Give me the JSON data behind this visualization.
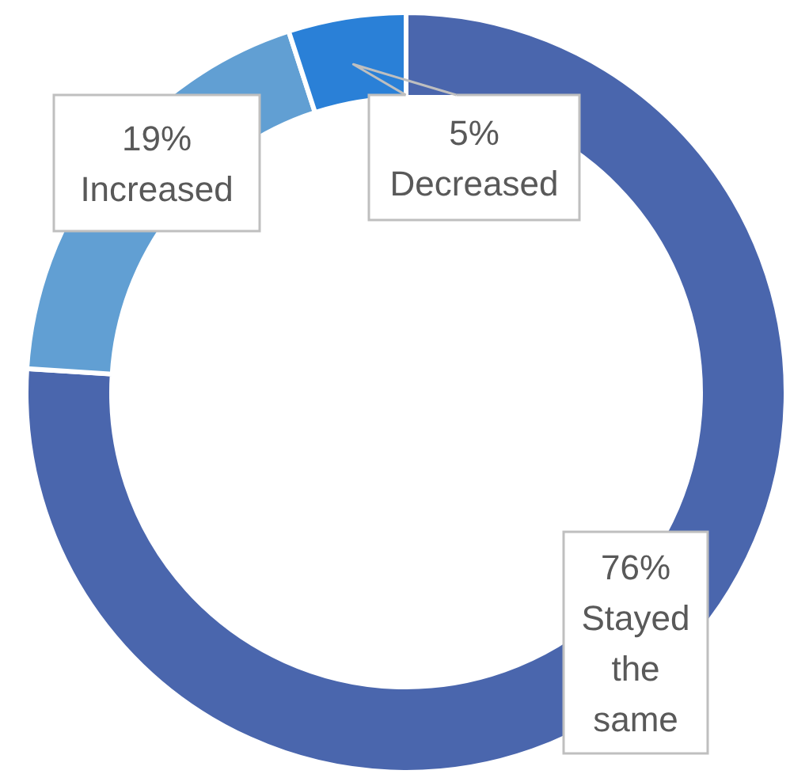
{
  "chart_data": {
    "type": "donut",
    "categories": [
      "Stayed the same",
      "Increased",
      "Decreased"
    ],
    "values": [
      76,
      19,
      5
    ],
    "value_labels": [
      "76%",
      "19%",
      "5%"
    ],
    "colors": [
      "#4a66ad",
      "#619fd3",
      "#2a80d7"
    ],
    "legend": false
  }
}
